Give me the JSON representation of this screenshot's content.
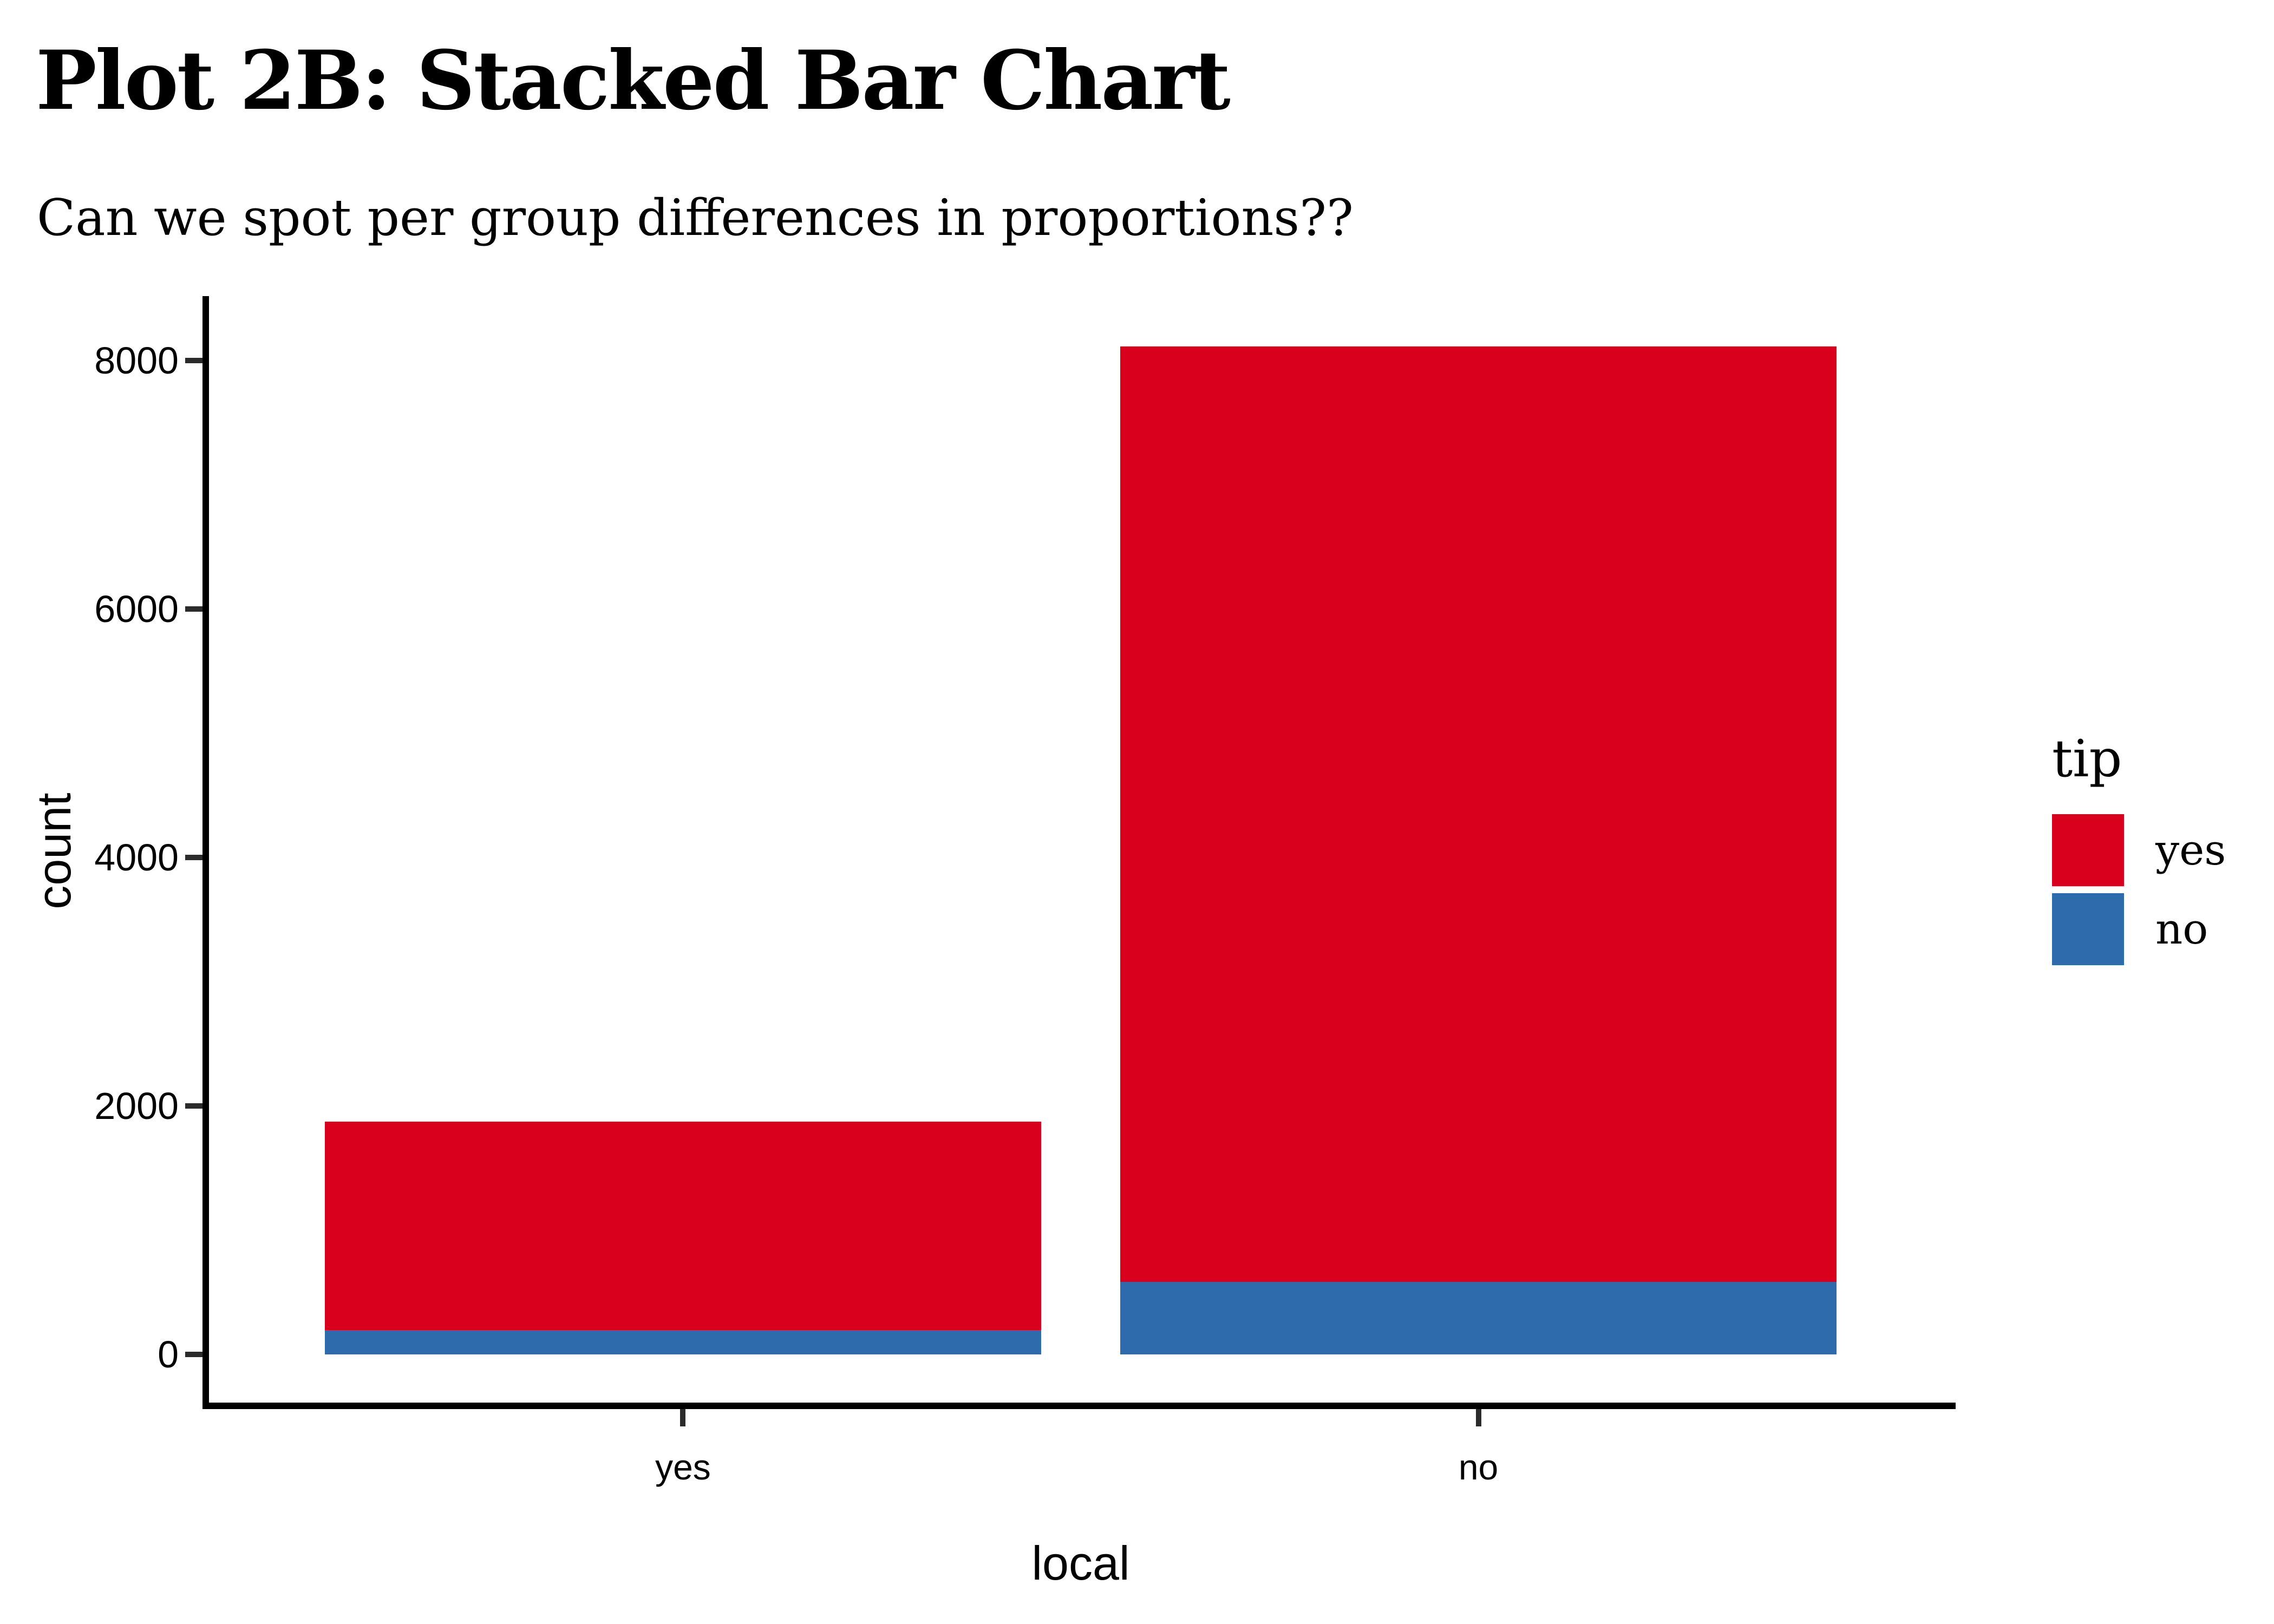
{
  "title": "Plot 2B: Stacked Bar Chart",
  "subtitle": "Can we spot per group differences in proportions??",
  "chart_data": {
    "type": "bar",
    "stacked": true,
    "title": "Plot 2B: Stacked Bar Chart",
    "subtitle": "Can we spot per group differences in proportions??",
    "xlabel": "local",
    "ylabel": "count",
    "categories": [
      "yes",
      "no"
    ],
    "series": [
      {
        "name": "yes",
        "color": "#D8001C",
        "values": [
          1680,
          7530
        ]
      },
      {
        "name": "no",
        "color": "#2E6BAC",
        "values": [
          195,
          585
        ]
      }
    ],
    "stack_order_bottom_to_top": [
      "no",
      "yes"
    ],
    "totals": [
      1875,
      8115
    ],
    "yticks": [
      0,
      2000,
      4000,
      6000,
      8000
    ],
    "ylim": [
      0,
      8115
    ],
    "y_expand": 0.05,
    "grid": false,
    "axis_color": "#000000",
    "tick_color": "#2b2b2b",
    "legend": {
      "position": "right",
      "title": "tip",
      "entries": [
        "yes",
        "no"
      ]
    }
  }
}
